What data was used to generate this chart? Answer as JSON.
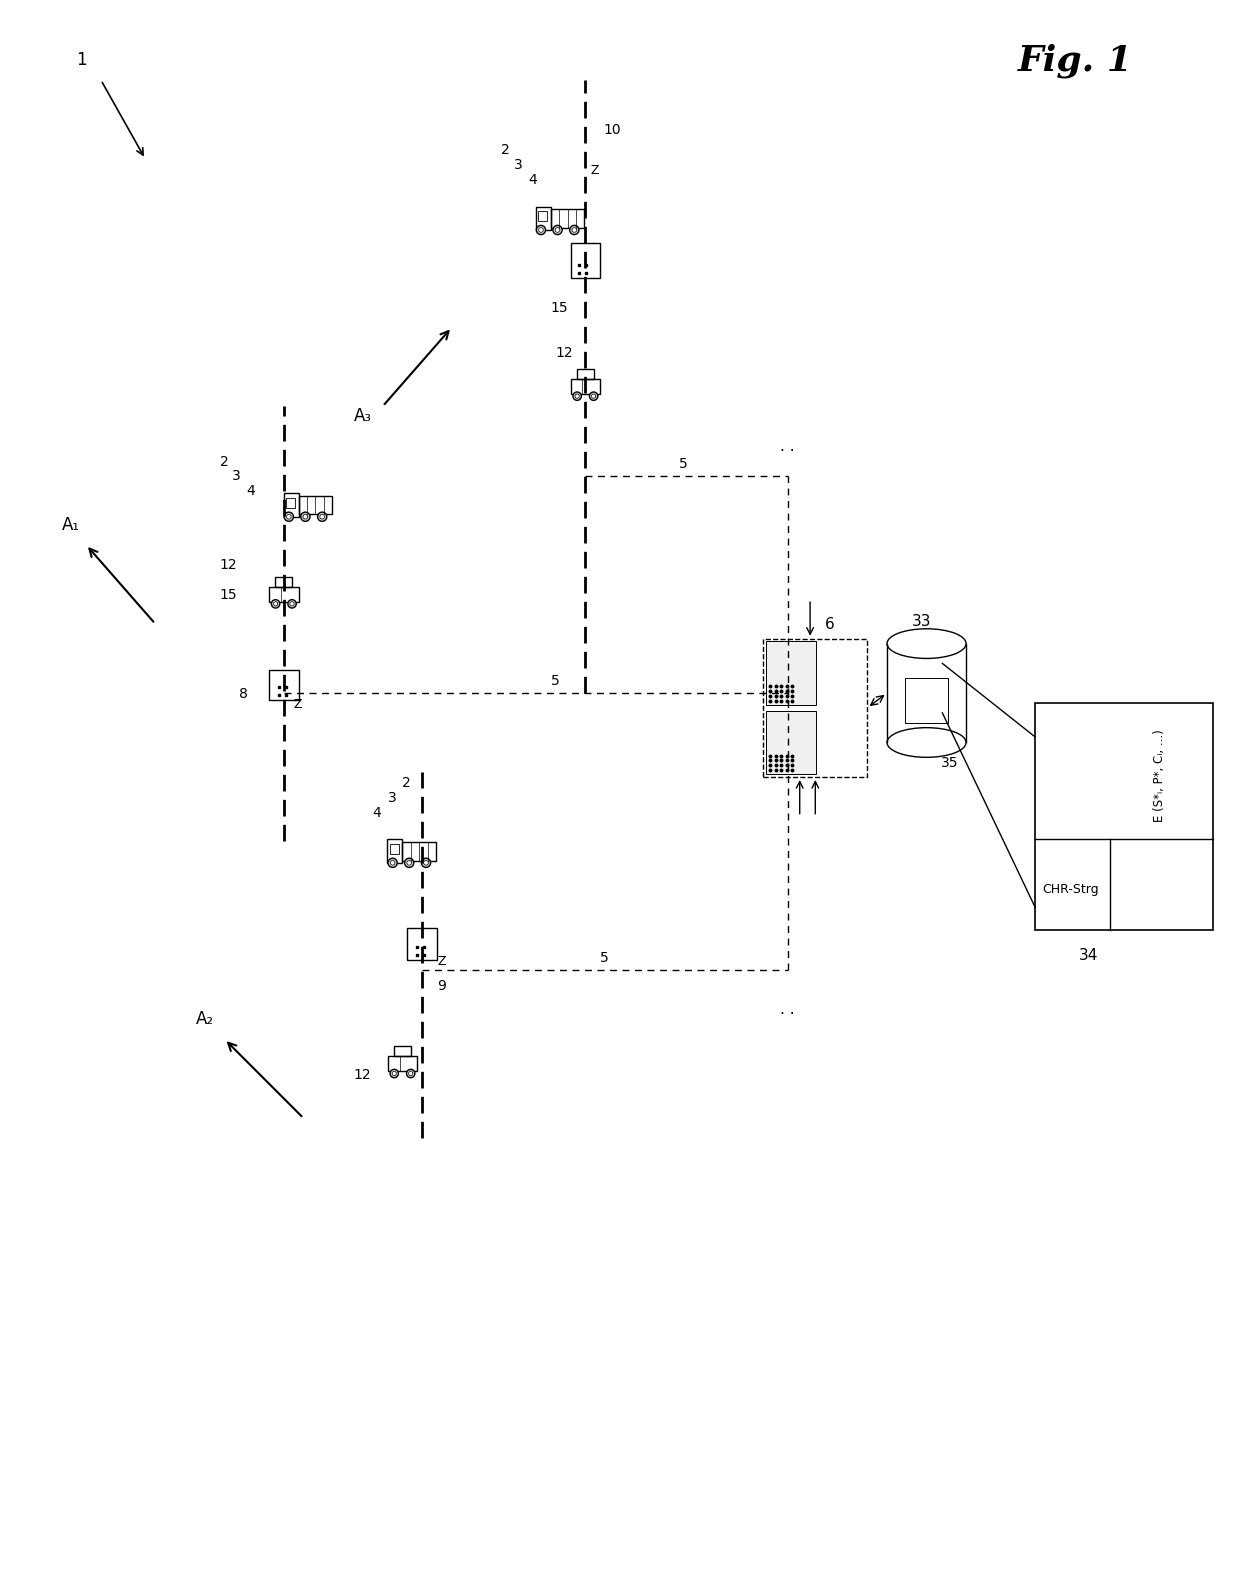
{
  "bg_color": "#ffffff",
  "line_color": "#000000",
  "fig_width": 12.4,
  "fig_height": 15.72,
  "fig_title": "Fig. 1",
  "label_1": "1",
  "label_A1": "A₁",
  "label_A2": "A₂",
  "label_A3": "A₃",
  "label_6": "6",
  "label_33": "33",
  "label_35": "35",
  "label_34": "34",
  "label_chr": "CHR-Strg",
  "label_e": "E (S*ᵢ, P*, Cᵢ, ...)",
  "label_5": "5"
}
